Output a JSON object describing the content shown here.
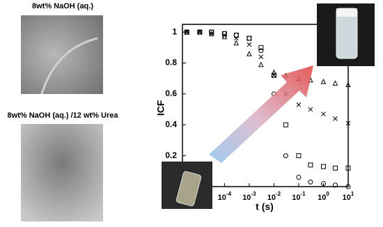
{
  "panels": [
    {
      "label": "8wt% NaOH (aq.)"
    },
    {
      "label": "8wt% NaOH (aq.) /12 wt% Urea"
    }
  ],
  "chart_data": {
    "type": "scatter",
    "xlabel": "t (s)",
    "ylabel": "ICF",
    "log_x": true,
    "x": [
      3e-06,
      1e-05,
      3e-05,
      0.0001,
      0.0003,
      0.001,
      0.003,
      0.01,
      0.03,
      0.1,
      0.3,
      1,
      3,
      10
    ],
    "series": [
      {
        "color": "#000000",
        "marker": "triangle",
        "values": [
          1,
          1,
          0.99,
          0.97,
          0.93,
          0.86,
          0.79,
          0.74,
          0.72,
          0.7,
          0.69,
          0.68,
          0.67,
          0.66
        ]
      },
      {
        "color": "#000000",
        "marker": "x",
        "values": [
          1,
          1,
          0.99,
          0.98,
          0.96,
          0.92,
          0.84,
          0.72,
          0.6,
          0.53,
          0.5,
          0.47,
          0.44,
          0.41
        ]
      },
      {
        "color": "#000000",
        "marker": "square",
        "values": [
          1,
          1,
          1,
          0.99,
          0.98,
          0.96,
          0.9,
          0.72,
          0.4,
          0.2,
          0.14,
          0.13,
          0.12,
          0.12
        ]
      },
      {
        "color": "#000000",
        "marker": "circle",
        "values": [
          1,
          1,
          1,
          0.99,
          0.98,
          0.96,
          0.88,
          0.6,
          0.2,
          0.06,
          0.03,
          0.02,
          0.01,
          0
        ]
      }
    ],
    "xlim": [
      2e-06,
      10
    ],
    "xticks": [
      {
        "value": 0.0001,
        "label": "10",
        "exponent": "-4"
      },
      {
        "value": 0.001,
        "label": "10",
        "exponent": "-3"
      },
      {
        "value": 0.01,
        "label": "10",
        "exponent": "-2"
      },
      {
        "value": 0.1,
        "label": "10",
        "exponent": "-1"
      },
      {
        "value": 1,
        "label": "10",
        "exponent": "0"
      },
      {
        "value": 10,
        "label": "10",
        "exponent": "1"
      }
    ],
    "ylim": [
      0,
      1.05
    ],
    "yticks": [
      0.2,
      0.4,
      0.6,
      0.8,
      1
    ],
    "grid": false
  }
}
